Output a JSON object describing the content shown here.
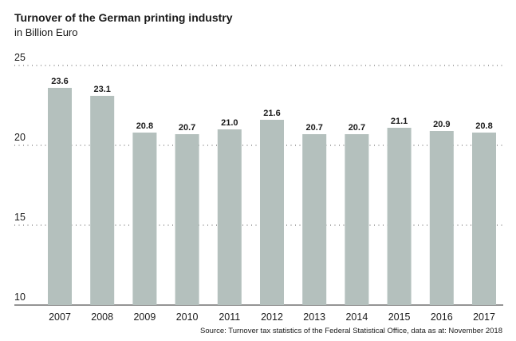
{
  "chart_data": {
    "type": "bar",
    "title": "Turnover of the German printing industry",
    "subtitle": "in Billion Euro",
    "categories": [
      "2007",
      "2008",
      "2009",
      "2010",
      "2011",
      "2012",
      "2013",
      "2014",
      "2015",
      "2016",
      "2017"
    ],
    "values": [
      23.6,
      23.1,
      20.8,
      20.7,
      21.0,
      21.6,
      20.7,
      20.7,
      21.1,
      20.9,
      20.8
    ],
    "value_labels": [
      "23.6",
      "23.1",
      "20.8",
      "20.7",
      "21.0",
      "21.6",
      "20.7",
      "20.7",
      "21.1",
      "20.9",
      "20.8"
    ],
    "ylim": [
      10,
      25
    ],
    "yticks": [
      "10",
      "15",
      "20",
      "25"
    ],
    "xlabel": "",
    "ylabel": "",
    "grid": true,
    "legend": "none",
    "source": "Source: Turnover tax statistics of the Federal Statistical Office, data as at: November 2018",
    "colors": {
      "bar": "#b4c0bd",
      "label_bg": "#ffffff",
      "grid": "#555555"
    }
  }
}
